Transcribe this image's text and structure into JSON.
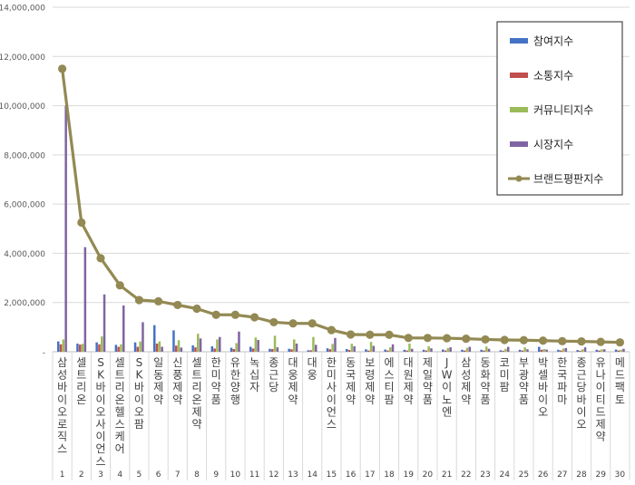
{
  "chart_data": {
    "type": "bar",
    "title": "",
    "xlabel": "",
    "ylabel": "",
    "ylim": [
      0,
      14000000
    ],
    "yticks": [
      0,
      2000000,
      4000000,
      6000000,
      8000000,
      10000000,
      12000000,
      14000000
    ],
    "ytick_labels": [
      "-",
      "2,000,000",
      "4,000,000",
      "6,000,000",
      "8,000,000",
      "10,000,000",
      "12,000,000",
      "14,000,000"
    ],
    "grid": true,
    "legend_position": "top-right",
    "ranks": [
      "1",
      "2",
      "3",
      "4",
      "5",
      "6",
      "7",
      "8",
      "9",
      "10",
      "11",
      "12",
      "13",
      "14",
      "15",
      "16",
      "17",
      "18",
      "19",
      "20",
      "21",
      "22",
      "23",
      "24",
      "25",
      "26",
      "27",
      "28",
      "29",
      "30"
    ],
    "categories": [
      "삼성바이오로직스",
      "셀트리온",
      "SK바이오사이언스",
      "셀트리온헬스케어",
      "SK바이오팜",
      "일동제약",
      "신풍제약",
      "셀트리온제약",
      "한미약품",
      "유한양행",
      "녹십자",
      "종근당",
      "대웅제약",
      "대웅",
      "한미사이언스",
      "동국제약",
      "보령제약",
      "에스티팜",
      "대원제약",
      "제일약품",
      "JW이노엔",
      "삼성제약",
      "동화약품",
      "코미팜",
      "부광약품",
      "박셀바이오",
      "한국파마",
      "종근당바이오",
      "유나이티드제약",
      "메드팩토"
    ],
    "series": [
      {
        "name": "참여지수",
        "color": "#4472c4",
        "values": [
          420000,
          330000,
          380000,
          280000,
          380000,
          1080000,
          870000,
          260000,
          220000,
          160000,
          200000,
          120000,
          120000,
          60000,
          140000,
          110000,
          100000,
          90000,
          80000,
          80000,
          90000,
          80000,
          80000,
          60000,
          80000,
          200000,
          80000,
          70000,
          80000,
          90000
        ]
      },
      {
        "name": "소통지수",
        "color": "#c0504d",
        "values": [
          300000,
          290000,
          300000,
          200000,
          200000,
          330000,
          250000,
          180000,
          130000,
          110000,
          130000,
          110000,
          100000,
          60000,
          100000,
          70000,
          50000,
          50000,
          50000,
          50000,
          50000,
          50000,
          50000,
          40000,
          50000,
          80000,
          50000,
          40000,
          50000,
          50000
        ]
      },
      {
        "name": "커뮤니티지수",
        "color": "#9bbb59",
        "values": [
          500000,
          320000,
          620000,
          300000,
          420000,
          420000,
          470000,
          730000,
          500000,
          350000,
          580000,
          650000,
          500000,
          600000,
          320000,
          320000,
          400000,
          180000,
          330000,
          220000,
          150000,
          160000,
          210000,
          120000,
          180000,
          110000,
          130000,
          100000,
          100000,
          80000
        ]
      },
      {
        "name": "시장지수",
        "color": "#8064a2",
        "values": [
          10000000,
          4250000,
          2330000,
          1880000,
          1200000,
          200000,
          170000,
          540000,
          600000,
          820000,
          480000,
          180000,
          330000,
          280000,
          560000,
          220000,
          240000,
          300000,
          120000,
          140000,
          180000,
          200000,
          120000,
          200000,
          100000,
          90000,
          150000,
          180000,
          100000,
          120000
        ]
      },
      {
        "name": "브랜드평판지수",
        "color": "#938953",
        "values": [
          11500000,
          5250000,
          3800000,
          2700000,
          2100000,
          2050000,
          1900000,
          1750000,
          1500000,
          1500000,
          1400000,
          1200000,
          1150000,
          1150000,
          880000,
          700000,
          690000,
          690000,
          560000,
          560000,
          550000,
          530000,
          500000,
          480000,
          470000,
          450000,
          430000,
          420000,
          400000,
          380000
        ]
      }
    ]
  }
}
